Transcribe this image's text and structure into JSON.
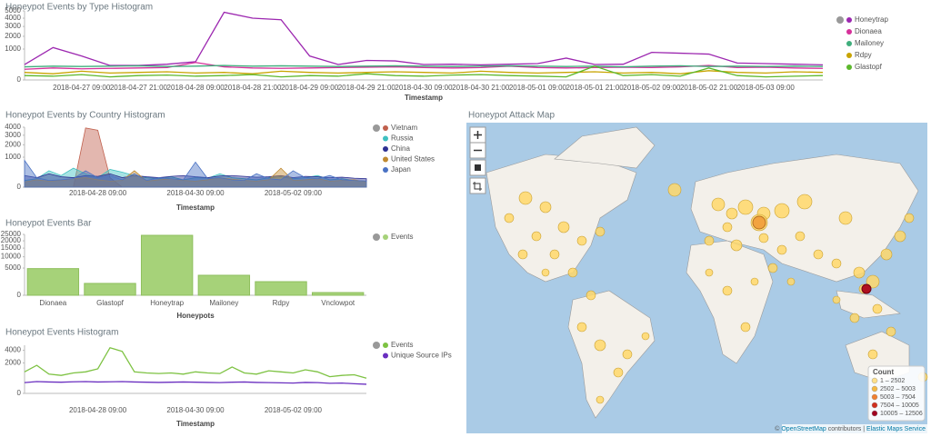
{
  "chart_data": [
    {
      "type": "line",
      "title": "Honeypot Events by Type Histogram",
      "x_label": "Timestamp",
      "scale": "sqrt",
      "categories": [
        null,
        null,
        "2018-04-27 09:00",
        null,
        "2018-04-27 21:00",
        null,
        "2018-04-28 09:00",
        null,
        "2018-04-28 21:00",
        null,
        "2018-04-29 09:00",
        null,
        "2018-04-29 21:00",
        null,
        "2018-04-30 09:00",
        null,
        "2018-04-30 21:00",
        null,
        "2018-05-01 09:00",
        null,
        "2018-05-01 21:00",
        null,
        "2018-05-02 09:00",
        null,
        "2018-05-02 21:00",
        null,
        "2018-05-03 09:00",
        null,
        null
      ],
      "ylim": [
        0,
        5000
      ],
      "yticks": [
        0,
        1000,
        2000,
        3000,
        4000,
        5000
      ],
      "series": [
        {
          "name": "Honeytrap",
          "color": "#9c27b0",
          "values": [
            250,
            1100,
            600,
            220,
            220,
            260,
            350,
            4800,
            4000,
            3800,
            600,
            250,
            400,
            380,
            250,
            260,
            240,
            260,
            280,
            500,
            250,
            260,
            800,
            750,
            700,
            300,
            280,
            260,
            240
          ]
        },
        {
          "name": "Dionaea",
          "color": "#d6309a",
          "values": [
            120,
            150,
            130,
            140,
            150,
            160,
            320,
            180,
            150,
            140,
            150,
            160,
            170,
            180,
            160,
            150,
            160,
            200,
            160,
            150,
            160,
            170,
            160,
            180,
            220,
            160,
            170,
            150,
            140
          ]
        },
        {
          "name": "Mailoney",
          "color": "#3fae7c",
          "values": [
            180,
            200,
            190,
            200,
            210,
            190,
            200,
            220,
            200,
            210,
            200,
            190,
            200,
            210,
            200,
            190,
            200,
            210,
            200,
            190,
            200,
            180,
            200,
            210,
            190,
            200,
            190,
            200,
            190
          ]
        },
        {
          "name": "Rdpy",
          "color": "#c8a400",
          "values": [
            60,
            40,
            80,
            50,
            60,
            70,
            50,
            60,
            40,
            80,
            60,
            50,
            60,
            70,
            60,
            50,
            80,
            60,
            50,
            60,
            70,
            50,
            60,
            40,
            90,
            60,
            50,
            70,
            60
          ]
        },
        {
          "name": "Glastopf",
          "color": "#5cb82c",
          "values": [
            20,
            15,
            30,
            10,
            20,
            25,
            15,
            20,
            30,
            10,
            20,
            15,
            40,
            20,
            15,
            25,
            30,
            20,
            15,
            10,
            200,
            20,
            30,
            15,
            150,
            20,
            10,
            15,
            20
          ]
        }
      ]
    },
    {
      "type": "area",
      "title": "Honeypot Events by Country Histogram",
      "x_label": "Timestamp",
      "scale": "sqrt",
      "categories": [
        null,
        null,
        null,
        null,
        null,
        null,
        "2018-04-28 09:00",
        null,
        null,
        null,
        null,
        null,
        null,
        null,
        "2018-04-30 09:00",
        null,
        null,
        null,
        null,
        null,
        null,
        null,
        "2018-05-02 09:00",
        null,
        null,
        null,
        null,
        null,
        null
      ],
      "ylim": [
        0,
        4000
      ],
      "yticks": [
        0,
        1000,
        2000,
        3000,
        4000
      ],
      "series": [
        {
          "name": "Vietnam",
          "color": "#c0604d",
          "values": [
            0,
            0,
            0,
            0,
            0,
            3900,
            3600,
            100,
            0,
            0,
            0,
            0,
            0,
            0,
            0,
            0,
            0,
            0,
            0,
            0,
            0,
            0,
            0,
            0,
            0,
            0,
            0,
            0,
            0
          ]
        },
        {
          "name": "Russia",
          "color": "#3fc0c0",
          "values": [
            50,
            80,
            300,
            150,
            400,
            200,
            100,
            350,
            250,
            150,
            100,
            80,
            120,
            60,
            100,
            90,
            200,
            100,
            80,
            60,
            100,
            120,
            80,
            100,
            150,
            60,
            80,
            50,
            40
          ]
        },
        {
          "name": "China",
          "color": "#2e3192",
          "values": [
            150,
            100,
            200,
            120,
            100,
            150,
            130,
            200,
            100,
            150,
            120,
            100,
            130,
            150,
            120,
            100,
            140,
            150,
            130,
            110,
            120,
            150,
            100,
            130,
            120,
            100,
            110,
            90,
            80
          ]
        },
        {
          "name": "United States",
          "color": "#c08a30",
          "values": [
            30,
            60,
            40,
            50,
            80,
            100,
            60,
            40,
            50,
            300,
            40,
            60,
            80,
            50,
            40,
            60,
            100,
            70,
            50,
            40,
            60,
            400,
            50,
            60,
            80,
            40,
            50,
            60,
            30
          ]
        },
        {
          "name": "Japan",
          "color": "#4a72c4",
          "values": [
            800,
            100,
            50,
            60,
            80,
            300,
            100,
            150,
            60,
            200,
            50,
            100,
            80,
            60,
            700,
            80,
            100,
            60,
            50,
            200,
            80,
            60,
            300,
            100,
            80,
            150,
            60,
            50,
            40
          ]
        }
      ]
    },
    {
      "type": "bar",
      "title": "Honeypot Events Bar",
      "x_label": "Honeypots",
      "scale": "sqrt",
      "categories": [
        "Dionaea",
        "Glastopf",
        "Honeytrap",
        "Mailoney",
        "Rdpy",
        "Vnclowpot"
      ],
      "ylim": [
        0,
        25000
      ],
      "yticks": [
        0,
        5000,
        10000,
        15000,
        20000,
        25000
      ],
      "series": [
        {
          "name": "Events",
          "color": "#a6d279",
          "values": [
            4800,
            950,
            24250,
            2700,
            1250,
            50
          ]
        }
      ]
    },
    {
      "type": "line",
      "title": "Honeypot Events Histogram",
      "x_label": "Timestamp",
      "scale": "sqrt",
      "categories": [
        null,
        null,
        null,
        null,
        null,
        null,
        "2018-04-28 09:00",
        null,
        null,
        null,
        null,
        null,
        null,
        null,
        "2018-04-30 09:00",
        null,
        null,
        null,
        null,
        null,
        null,
        null,
        "2018-05-02 09:00",
        null,
        null,
        null,
        null,
        null,
        null
      ],
      "ylim": [
        0,
        5000
      ],
      "yticks": [
        0,
        2000,
        4000
      ],
      "series": [
        {
          "name": "Events",
          "color": "#7dc242",
          "values": [
            1000,
            1700,
            800,
            700,
            900,
            1000,
            1300,
            4500,
            3800,
            1000,
            900,
            850,
            900,
            800,
            1000,
            900,
            850,
            1500,
            900,
            800,
            1100,
            1000,
            900,
            1200,
            1000,
            600,
            700,
            750,
            500
          ]
        },
        {
          "name": "Unique Source IPs",
          "color": "#6a2fc0",
          "values": [
            250,
            300,
            280,
            270,
            290,
            300,
            280,
            290,
            300,
            280,
            270,
            260,
            270,
            280,
            270,
            260,
            250,
            270,
            280,
            260,
            250,
            240,
            230,
            260,
            250,
            220,
            230,
            200,
            180
          ]
        }
      ]
    }
  ],
  "map": {
    "title": "Honeypot Attack Map",
    "legend": {
      "title": "Count",
      "ranges": [
        "1 – 2502",
        "2502 – 5003",
        "5003 – 7504",
        "7504 – 10005",
        "10005 – 12506"
      ],
      "colors": [
        "#ffe08a",
        "#f5b942",
        "#f08030",
        "#d03020",
        "#a00020"
      ]
    },
    "attribution": {
      "prefix": "©",
      "source": "OpenStreetMap",
      "middle": "contributors |",
      "service": "Elastic Maps Service"
    }
  }
}
